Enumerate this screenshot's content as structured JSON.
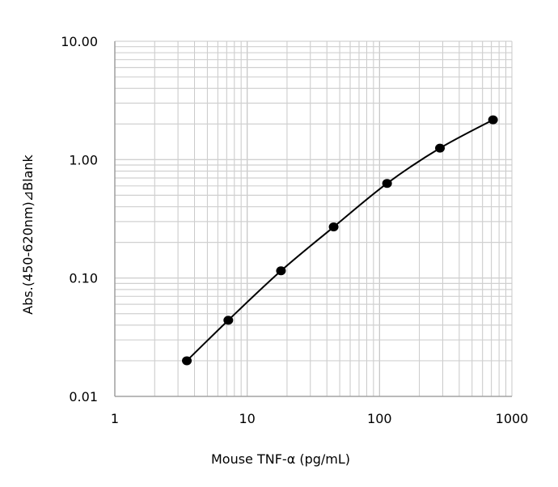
{
  "chart_data": {
    "type": "scatter",
    "title": "",
    "xlabel": "Mouse TNF-α (pg/mL)",
    "ylabel": "Abs.(450-620nm)⊿Blank",
    "x_scale": "log",
    "y_scale": "log",
    "xlim": [
      1,
      1000
    ],
    "ylim": [
      0.01,
      10
    ],
    "x_ticks": [
      "1",
      "10",
      "100",
      "1000"
    ],
    "y_ticks": [
      "0.01",
      "0.10",
      "1.00",
      "10.00"
    ],
    "grid": true,
    "legend": "none",
    "series": [
      {
        "x": [
          3.5,
          7.2,
          18,
          45,
          114,
          286,
          720
        ],
        "y": [
          0.02,
          0.044,
          0.115,
          0.27,
          0.63,
          1.25,
          2.17
        ],
        "marker": "circle",
        "line": "smooth",
        "color": "#000000"
      }
    ]
  }
}
